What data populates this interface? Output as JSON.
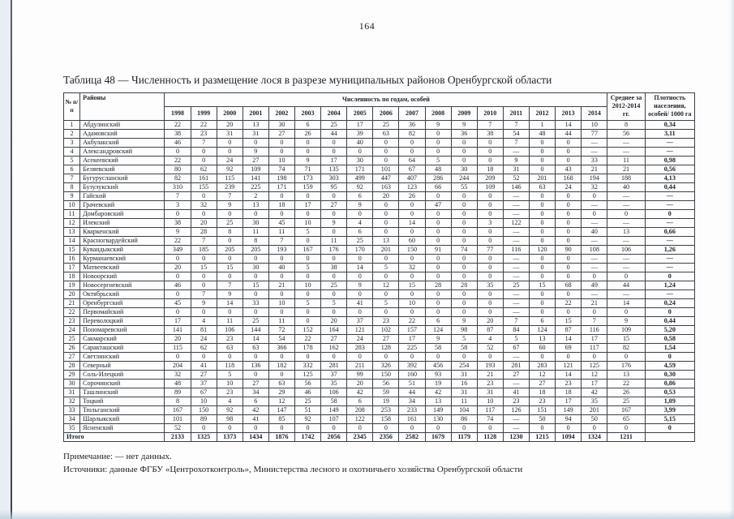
{
  "page": {
    "number": "164"
  },
  "table": {
    "title": "Таблица 48 — Численность и размещение лося в разрезе муниципальных районов Оренбургской области",
    "header": {
      "num": "№ п/п",
      "district": "Районы",
      "years_group": "Численность по годам, особей",
      "years": [
        "1998",
        "1999",
        "2000",
        "2001",
        "2002",
        "2003",
        "2004",
        "2005",
        "2006",
        "2007",
        "2008",
        "2009",
        "2010",
        "2011",
        "2012",
        "2013",
        "2014"
      ],
      "avg": "Среднее за 2012-2014 гг.",
      "density": "Плотность населения, особей/ 1000 га"
    },
    "rows": [
      {
        "n": "1",
        "district": "Абдулинский",
        "values": [
          "22",
          "22",
          "20",
          "13",
          "30",
          "6",
          "25",
          "17",
          "25",
          "36",
          "9",
          "9",
          "7",
          "7",
          "1",
          "14",
          "10"
        ],
        "avg": "8",
        "density": "0,34"
      },
      {
        "n": "2",
        "district": "Адамовский",
        "values": [
          "38",
          "23",
          "31",
          "31",
          "27",
          "26",
          "44",
          "39",
          "63",
          "82",
          "0",
          "36",
          "38",
          "54",
          "48",
          "44",
          "77"
        ],
        "avg": "56",
        "density": "3,11"
      },
      {
        "n": "3",
        "district": "Акбулакский",
        "values": [
          "46",
          "7",
          "0",
          "0",
          "0",
          "0",
          "0",
          "40",
          "0",
          "0",
          "0",
          "0",
          "0",
          "7",
          "0",
          "0",
          "—"
        ],
        "avg": "—",
        "density": "—"
      },
      {
        "n": "4",
        "district": "Александровский",
        "values": [
          "0",
          "0",
          "0",
          "9",
          "0",
          "0",
          "0",
          "0",
          "0",
          "0",
          "0",
          "0",
          "0",
          "—",
          "0",
          "0",
          "—"
        ],
        "avg": "—",
        "density": "—"
      },
      {
        "n": "5",
        "district": "Асекеевский",
        "values": [
          "22",
          "0",
          "24",
          "27",
          "10",
          "9",
          "17",
          "30",
          "0",
          "64",
          "5",
          "0",
          "0",
          "9",
          "0",
          "0",
          "33"
        ],
        "avg": "11",
        "density": "0,98"
      },
      {
        "n": "6",
        "district": "Беляевский",
        "values": [
          "80",
          "62",
          "92",
          "109",
          "74",
          "71",
          "135",
          "171",
          "101",
          "67",
          "48",
          "30",
          "18",
          "31",
          "0",
          "43",
          "21"
        ],
        "avg": "21",
        "density": "0,56"
      },
      {
        "n": "7",
        "district": "Бугурусланский",
        "values": [
          "82",
          "161",
          "115",
          "141",
          "198",
          "173",
          "303",
          "499",
          "447",
          "407",
          "286",
          "244",
          "209",
          "52",
          "201",
          "168",
          "194"
        ],
        "avg": "188",
        "density": "4,13"
      },
      {
        "n": "8",
        "district": "Бузулукский",
        "values": [
          "310",
          "155",
          "239",
          "225",
          "171",
          "159",
          "95",
          "92",
          "163",
          "123",
          "66",
          "55",
          "109",
          "146",
          "63",
          "24",
          "32"
        ],
        "avg": "40",
        "density": "0,44"
      },
      {
        "n": "9",
        "district": "Гайский",
        "values": [
          "7",
          "0",
          "7",
          "2",
          "0",
          "0",
          "0",
          "6",
          "20",
          "26",
          "0",
          "0",
          "0",
          "—",
          "0",
          "0",
          "0"
        ],
        "avg": "—",
        "density": "—"
      },
      {
        "n": "10",
        "district": "Грачевский",
        "values": [
          "3",
          "32",
          "9",
          "13",
          "18",
          "17",
          "27",
          "9",
          "0",
          "0",
          "47",
          "0",
          "0",
          "—",
          "0",
          "0",
          "—"
        ],
        "avg": "—",
        "density": "—"
      },
      {
        "n": "11",
        "district": "Домбаровский",
        "values": [
          "0",
          "0",
          "0",
          "0",
          "0",
          "0",
          "0",
          "0",
          "0",
          "0",
          "0",
          "0",
          "0",
          "—",
          "0",
          "0",
          "0"
        ],
        "avg": "0",
        "density": "0"
      },
      {
        "n": "12",
        "district": "Илекский",
        "values": [
          "38",
          "20",
          "25",
          "30",
          "45",
          "10",
          "9",
          "4",
          "0",
          "14",
          "0",
          "0",
          "3",
          "122",
          "0",
          "0",
          "—"
        ],
        "avg": "—",
        "density": "—"
      },
      {
        "n": "13",
        "district": "Кваркенский",
        "values": [
          "9",
          "28",
          "8",
          "11",
          "11",
          "5",
          "0",
          "6",
          "0",
          "0",
          "0",
          "0",
          "0",
          "—",
          "0",
          "0",
          "40"
        ],
        "avg": "13",
        "density": "0,66"
      },
      {
        "n": "14",
        "district": "Красногвардейский",
        "values": [
          "22",
          "7",
          "0",
          "8",
          "7",
          "0",
          "11",
          "25",
          "13",
          "60",
          "0",
          "0",
          "0",
          "—",
          "0",
          "0",
          "—"
        ],
        "avg": "—",
        "density": "—"
      },
      {
        "n": "15",
        "district": "Кувандыкский",
        "values": [
          "349",
          "185",
          "205",
          "205",
          "193",
          "167",
          "176",
          "170",
          "201",
          "150",
          "91",
          "74",
          "77",
          "116",
          "120",
          "90",
          "108"
        ],
        "avg": "106",
        "density": "1,26"
      },
      {
        "n": "16",
        "district": "Курманаевский",
        "values": [
          "0",
          "0",
          "0",
          "0",
          "0",
          "0",
          "0",
          "0",
          "0",
          "0",
          "0",
          "0",
          "0",
          "—",
          "0",
          "0",
          "—"
        ],
        "avg": "—",
        "density": "—"
      },
      {
        "n": "17",
        "district": "Матвеевский",
        "values": [
          "20",
          "15",
          "15",
          "30",
          "40",
          "5",
          "38",
          "14",
          "5",
          "32",
          "0",
          "0",
          "0",
          "—",
          "0",
          "0",
          "—"
        ],
        "avg": "—",
        "density": "—"
      },
      {
        "n": "18",
        "district": "Новоорский",
        "values": [
          "0",
          "0",
          "0",
          "0",
          "0",
          "0",
          "0",
          "0",
          "0",
          "0",
          "0",
          "0",
          "0",
          "—",
          "0",
          "0",
          "0"
        ],
        "avg": "0",
        "density": "0"
      },
      {
        "n": "19",
        "district": "Новосергиевский",
        "values": [
          "46",
          "0",
          "7",
          "15",
          "21",
          "10",
          "25",
          "9",
          "12",
          "15",
          "28",
          "28",
          "35",
          "25",
          "15",
          "68",
          "49"
        ],
        "avg": "44",
        "density": "1,24"
      },
      {
        "n": "20",
        "district": "Октябрьский",
        "values": [
          "0",
          "7",
          "9",
          "0",
          "0",
          "0",
          "0",
          "0",
          "0",
          "0",
          "0",
          "0",
          "0",
          "—",
          "0",
          "0",
          "—"
        ],
        "avg": "—",
        "density": "—"
      },
      {
        "n": "21",
        "district": "Оренбургский",
        "values": [
          "45",
          "9",
          "14",
          "33",
          "10",
          "5",
          "5",
          "41",
          "5",
          "10",
          "0",
          "0",
          "0",
          "—",
          "0",
          "22",
          "21"
        ],
        "avg": "14",
        "density": "0,24"
      },
      {
        "n": "22",
        "district": "Первомайский",
        "values": [
          "0",
          "0",
          "0",
          "0",
          "0",
          "0",
          "0",
          "0",
          "0",
          "0",
          "0",
          "0",
          "0",
          "—",
          "0",
          "0",
          "0"
        ],
        "avg": "0",
        "density": "0"
      },
      {
        "n": "23",
        "district": "Переволоцкий",
        "values": [
          "17",
          "4",
          "11",
          "25",
          "11",
          "0",
          "20",
          "37",
          "23",
          "22",
          "6",
          "9",
          "20",
          "7",
          "6",
          "15",
          "7"
        ],
        "avg": "9",
        "density": "0,44"
      },
      {
        "n": "24",
        "district": "Пономаревский",
        "values": [
          "141",
          "81",
          "106",
          "144",
          "72",
          "152",
          "164",
          "121",
          "102",
          "157",
          "124",
          "98",
          "87",
          "84",
          "124",
          "87",
          "116"
        ],
        "avg": "109",
        "density": "5,20"
      },
      {
        "n": "25",
        "district": "Сакмарский",
        "values": [
          "20",
          "24",
          "23",
          "14",
          "54",
          "22",
          "27",
          "24",
          "27",
          "17",
          "9",
          "5",
          "4",
          "5",
          "13",
          "14",
          "17"
        ],
        "avg": "15",
        "density": "0,58"
      },
      {
        "n": "26",
        "district": "Саракташский",
        "values": [
          "115",
          "62",
          "63",
          "63",
          "366",
          "178",
          "162",
          "283",
          "128",
          "225",
          "58",
          "58",
          "52",
          "67",
          "60",
          "69",
          "117"
        ],
        "avg": "82",
        "density": "1,54"
      },
      {
        "n": "27",
        "district": "Светлинский",
        "values": [
          "0",
          "0",
          "0",
          "0",
          "0",
          "0",
          "0",
          "0",
          "0",
          "0",
          "0",
          "0",
          "0",
          "—",
          "0",
          "0",
          "0"
        ],
        "avg": "0",
        "density": "0"
      },
      {
        "n": "28",
        "district": "Северный",
        "values": [
          "204",
          "41",
          "118",
          "136",
          "182",
          "332",
          "281",
          "211",
          "326",
          "392",
          "456",
          "254",
          "193",
          "281",
          "283",
          "121",
          "125"
        ],
        "avg": "176",
        "density": "4,59"
      },
      {
        "n": "29",
        "district": "Соль-Илецкий",
        "values": [
          "32",
          "27",
          "5",
          "0",
          "0",
          "125",
          "37",
          "99",
          "150",
          "160",
          "93",
          "31",
          "21",
          "27",
          "12",
          "14",
          "12"
        ],
        "avg": "13",
        "density": "0,30"
      },
      {
        "n": "30",
        "district": "Сорочинский",
        "values": [
          "48",
          "37",
          "10",
          "27",
          "63",
          "56",
          "35",
          "20",
          "56",
          "51",
          "19",
          "16",
          "23",
          "—",
          "27",
          "23",
          "17"
        ],
        "avg": "22",
        "density": "0,86"
      },
      {
        "n": "31",
        "district": "Ташлинский",
        "values": [
          "89",
          "67",
          "23",
          "34",
          "29",
          "46",
          "106",
          "42",
          "59",
          "44",
          "42",
          "31",
          "31",
          "41",
          "18",
          "18",
          "42"
        ],
        "avg": "26",
        "density": "0,53"
      },
      {
        "n": "32",
        "district": "Тоцкий",
        "values": [
          "8",
          "10",
          "4",
          "6",
          "12",
          "25",
          "58",
          "6",
          "19",
          "34",
          "13",
          "11",
          "10",
          "23",
          "23",
          "17",
          "35"
        ],
        "avg": "25",
        "density": "1,09"
      },
      {
        "n": "33",
        "district": "Тюльганский",
        "values": [
          "167",
          "150",
          "92",
          "42",
          "147",
          "51",
          "149",
          "208",
          "253",
          "233",
          "149",
          "104",
          "117",
          "126",
          "151",
          "149",
          "201"
        ],
        "avg": "167",
        "density": "3,99"
      },
      {
        "n": "34",
        "district": "Шарлыкский",
        "values": [
          "101",
          "89",
          "98",
          "41",
          "85",
          "92",
          "107",
          "122",
          "158",
          "161",
          "130",
          "86",
          "74",
          "—",
          "50",
          "94",
          "50"
        ],
        "avg": "65",
        "density": "5,15"
      },
      {
        "n": "35",
        "district": "Ясненский",
        "values": [
          "52",
          "0",
          "0",
          "0",
          "0",
          "0",
          "0",
          "0",
          "0",
          "0",
          "0",
          "0",
          "0",
          "—",
          "0",
          "0",
          "0"
        ],
        "avg": "0",
        "density": "0"
      }
    ],
    "total": {
      "label": "Итого",
      "values": [
        "2133",
        "1325",
        "1373",
        "1434",
        "1876",
        "1742",
        "2056",
        "2345",
        "2356",
        "2582",
        "1679",
        "1179",
        "1128",
        "1230",
        "1215",
        "1094",
        "1324"
      ],
      "avg": "1211",
      "density": ""
    }
  },
  "notes": {
    "note": "Примечание: — нет данных.",
    "sources": "Источники: данные ФГБУ «Центрохотконтроль», Министерства лесного и охотничьего хозяйства Оренбургской области"
  }
}
